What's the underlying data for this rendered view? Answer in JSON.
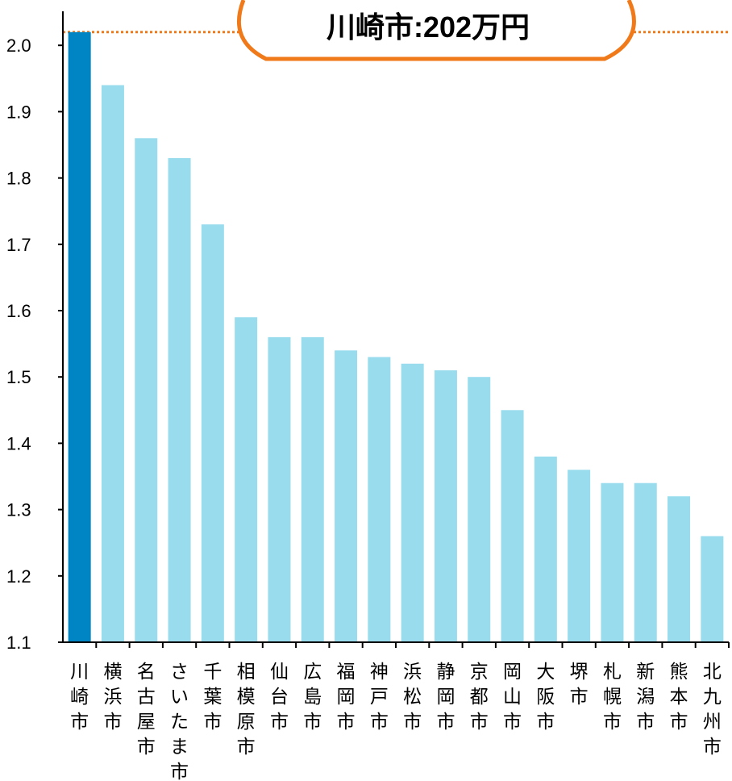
{
  "chart_data": {
    "type": "bar",
    "categories": [
      "川崎市",
      "横浜市",
      "名古屋市",
      "さいたま市",
      "千葉市",
      "相模原市",
      "仙台市",
      "広島市",
      "福岡市",
      "神戸市",
      "浜松市",
      "静岡市",
      "京都市",
      "岡山市",
      "大阪市",
      "堺市",
      "札幌市",
      "新潟市",
      "熊本市",
      "北九州市"
    ],
    "values": [
      2.02,
      1.94,
      1.86,
      1.83,
      1.73,
      1.59,
      1.56,
      1.56,
      1.54,
      1.53,
      1.52,
      1.51,
      1.5,
      1.45,
      1.38,
      1.36,
      1.34,
      1.34,
      1.32,
      1.26
    ],
    "highlight_category": "川崎市",
    "ylim": [
      1.1,
      2.05
    ],
    "yticks": [
      "1.1",
      "1.2",
      "1.3",
      "1.4",
      "1.5",
      "1.6",
      "1.7",
      "1.8",
      "1.9",
      "2.0"
    ],
    "xlabel": "",
    "ylabel": "",
    "grid": false,
    "reference_line": {
      "value": 2.02,
      "style": "dotted"
    },
    "annotation": "川崎市:202万円"
  },
  "colors": {
    "bar": "#99dcee",
    "highlight_bar": "#0085c4",
    "accent": "#f07a1a",
    "axis": "#000000"
  }
}
